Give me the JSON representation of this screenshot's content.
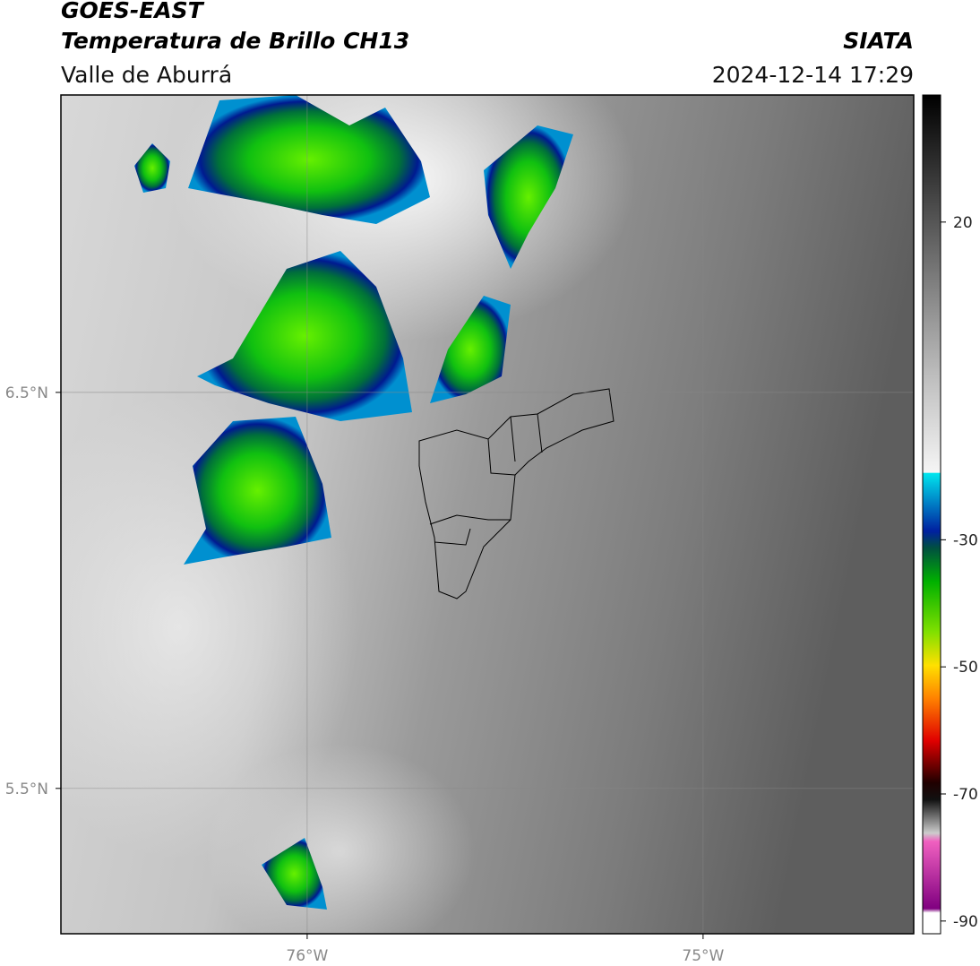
{
  "header": {
    "title": "GOES-EAST",
    "subtitle": "Temperatura de Brillo CH13",
    "region": "Valle de Aburrá",
    "source": "SIATA",
    "timestamp": "2024-12-14 17:29"
  },
  "map": {
    "xlim": [
      -76.622,
      -74.468
    ],
    "ylim": [
      5.133,
      7.251
    ],
    "xticks": [
      {
        "value": -76,
        "label": "76°W"
      },
      {
        "value": -75,
        "label": "75°W"
      }
    ],
    "yticks": [
      {
        "value": 5.5,
        "label": "5.5°N"
      },
      {
        "value": 6.5,
        "label": "6.5°N"
      }
    ],
    "grid": true
  },
  "colorbar": {
    "lim": [
      -92,
      40
    ],
    "ticks": [
      20,
      -30,
      -50,
      -70,
      -90
    ]
  }
}
